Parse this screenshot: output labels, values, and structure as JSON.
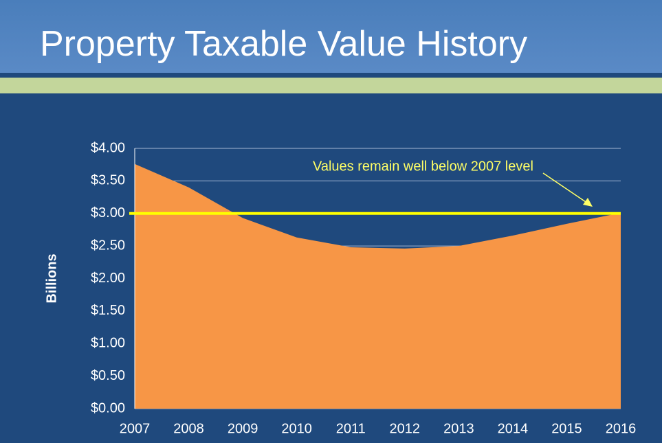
{
  "chart_data": {
    "type": "area",
    "title": "Property Taxable Value History",
    "y_label": "Billions",
    "categories": [
      "2007",
      "2008",
      "2009",
      "2010",
      "2011",
      "2012",
      "2013",
      "2014",
      "2015",
      "2016"
    ],
    "series": [
      {
        "name": "Taxable Value",
        "color": "#f79646",
        "values": [
          3.76,
          3.4,
          2.93,
          2.63,
          2.48,
          2.46,
          2.5,
          2.66,
          2.84,
          3.01
        ]
      }
    ],
    "ylim": [
      0,
      4
    ],
    "yticks": [
      {
        "value": 0,
        "label": "$0.00"
      },
      {
        "value": 0.5,
        "label": "$0.50"
      },
      {
        "value": 1,
        "label": "$1.00"
      },
      {
        "value": 1.5,
        "label": "$1.50"
      },
      {
        "value": 2,
        "label": "$2.00"
      },
      {
        "value": 2.5,
        "label": "$2.50"
      },
      {
        "value": 3,
        "label": "$3.00"
      },
      {
        "value": 3.5,
        "label": "$3.50"
      },
      {
        "value": 4,
        "label": "$4.00"
      }
    ],
    "grid": true,
    "reference_line": {
      "value": 3,
      "color": "#ffff00"
    },
    "annotation": "Values remain well below 2007 level",
    "annotation_color": "#ffff66"
  }
}
